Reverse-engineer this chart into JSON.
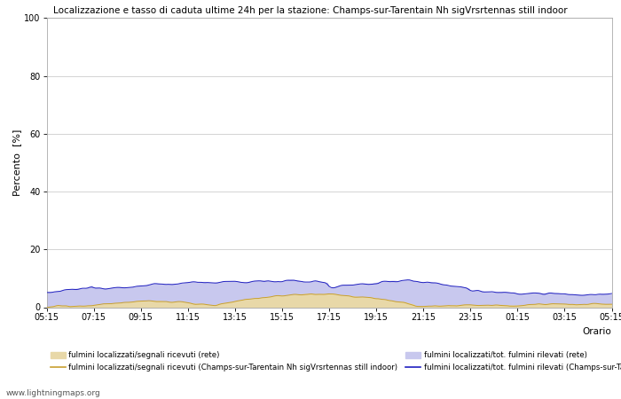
{
  "title": "Localizzazione e tasso di caduta ultime 24h per la stazione: Champs-sur-Tarentain Nh sigVrsrtennas still indoor",
  "ylabel": "Percento  [%]",
  "xlabel": "Orario",
  "watermark": "www.lightningmaps.org",
  "ylim": [
    0,
    100
  ],
  "yticks": [
    0,
    20,
    40,
    60,
    80,
    100
  ],
  "xtick_labels": [
    "05:15",
    "07:15",
    "09:15",
    "11:15",
    "13:15",
    "15:15",
    "17:15",
    "19:15",
    "21:15",
    "23:15",
    "01:15",
    "03:15",
    "05:15"
  ],
  "fill_rete_loc_color": "#e8d8a8",
  "fill_rete_tot_color": "#c8c8ee",
  "line_station_loc_color": "#c8a030",
  "line_station_tot_color": "#2020c0",
  "background_color": "#ffffff",
  "grid_color": "#cccccc",
  "legend_labels": [
    "fulmini localizzati/segnali ricevuti (rete)",
    "fulmini localizzati/segnali ricevuti (Champs-sur-Tarentain Nh sigVrsrtennas still indoor)",
    "fulmini localizzati/tot. fulmini rilevati (rete)",
    "fulmini localizzati/tot. fulmini rilevati (Champs-sur-Tarentain Nh sigVrsrtennas still indoor)"
  ],
  "n_points": 289
}
